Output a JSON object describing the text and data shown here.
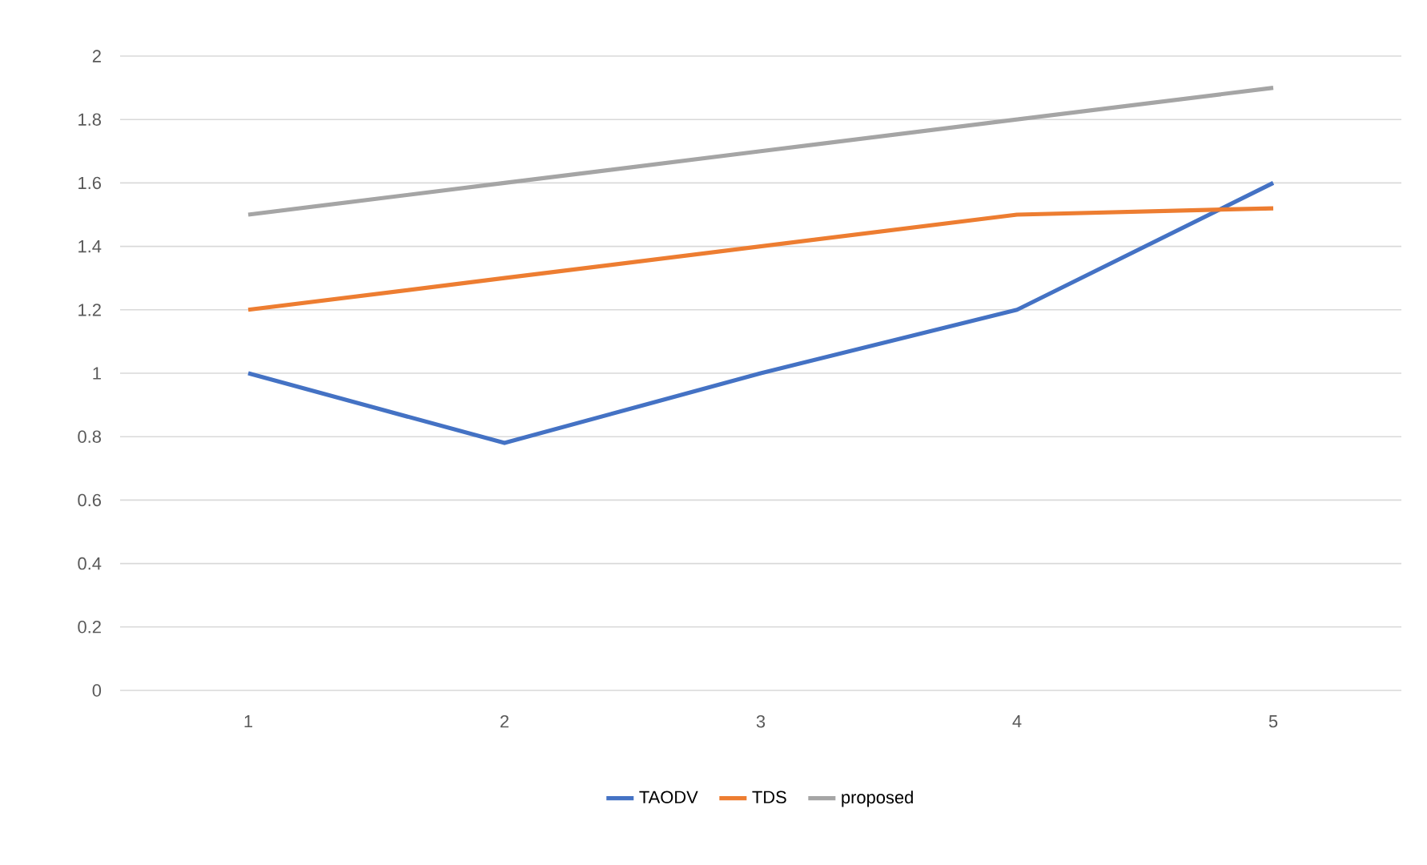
{
  "chart_data": {
    "type": "line",
    "categories": [
      "1",
      "2",
      "3",
      "4",
      "5"
    ],
    "series": [
      {
        "name": "TAODV",
        "color": "#4472c4",
        "values": [
          1.0,
          0.78,
          1.0,
          1.2,
          1.6
        ]
      },
      {
        "name": "TDS",
        "color": "#ed7d31",
        "values": [
          1.2,
          1.3,
          1.4,
          1.5,
          1.52
        ]
      },
      {
        "name": "proposed",
        "color": "#a5a5a5",
        "values": [
          1.5,
          1.6,
          1.7,
          1.8,
          1.9
        ]
      }
    ],
    "ylim": [
      0,
      2
    ],
    "yticks": [
      0,
      0.2,
      0.4,
      0.6,
      0.8,
      1,
      1.2,
      1.4,
      1.6,
      1.8,
      2
    ],
    "grid": "y",
    "legend": "bottom",
    "marker": "none",
    "line_style": "solid"
  }
}
